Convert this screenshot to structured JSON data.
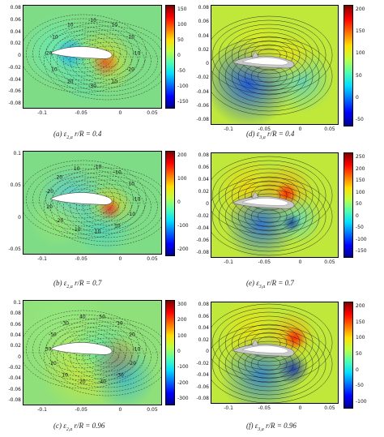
{
  "figure": {
    "panels": [
      {
        "id": "a",
        "caption_prefix": "(a) ",
        "caption_symbol": "ε",
        "caption_sub": "2,a",
        "caption_suffix": "  r/R = 0.4",
        "x_ticks": [
          "-0.1",
          "-0.05",
          "0",
          "0.05"
        ],
        "y_ticks": [
          "0.08",
          "0.06",
          "0.04",
          "0.02",
          "0",
          "-0.02",
          "-0.04",
          "-0.06",
          "-0.08"
        ],
        "colorbar_ticks": [
          "150",
          "100",
          "50",
          "0",
          "-50",
          "-100",
          "-150"
        ],
        "contour_labels": [
          "-10",
          "-20",
          "10",
          "-30",
          "20",
          "10",
          "-20",
          "-10",
          "10",
          "-10",
          "10",
          "-10"
        ]
      },
      {
        "id": "d",
        "caption_prefix": "(d) ",
        "caption_symbol": "ε",
        "caption_sub": "3,a",
        "caption_suffix": "  r/R = 0.4",
        "x_ticks": [
          "-0.1",
          "-0.05",
          "0",
          "0.05"
        ],
        "y_ticks": [
          "0.08",
          "0.06",
          "0.04",
          "0.02",
          "0",
          "-0.02",
          "-0.04",
          "-0.06",
          "-0.08"
        ],
        "colorbar_ticks": [
          "200",
          "150",
          "100",
          "50",
          "0",
          "-50"
        ],
        "contour_labels": []
      },
      {
        "id": "b",
        "caption_prefix": "(b) ",
        "caption_symbol": "ε",
        "caption_sub": "2,a",
        "caption_suffix": "  r/R = 0.7",
        "x_ticks": [
          "-0.1",
          "-0.05",
          "0",
          "0.05"
        ],
        "y_ticks": [
          "0.1",
          "0.05",
          "0",
          "-0.05"
        ],
        "colorbar_ticks": [
          "200",
          "100",
          "0",
          "-100",
          "-200"
        ],
        "contour_labels": [
          "-10",
          "-10",
          "10",
          "10",
          "-10",
          "-20",
          "20",
          "-20",
          "20",
          "10",
          "-10",
          "-10",
          "10"
        ]
      },
      {
        "id": "e",
        "caption_prefix": "(e) ",
        "caption_symbol": "ε",
        "caption_sub": "3,a",
        "caption_suffix": "  r/R = 0.7",
        "x_ticks": [
          "-0.1",
          "-0.05",
          "0",
          "0.05"
        ],
        "y_ticks": [
          "0.08",
          "0.06",
          "0.04",
          "0.02",
          "0",
          "-0.02",
          "-0.04",
          "-0.06",
          "-0.08"
        ],
        "colorbar_ticks": [
          "250",
          "200",
          "150",
          "100",
          "50",
          "0",
          "-50",
          "-100",
          "-150"
        ],
        "contour_labels": []
      },
      {
        "id": "c",
        "caption_prefix": "(c) ",
        "caption_symbol": "ε",
        "caption_sub": "2,a",
        "caption_suffix": "  r/R = 0.96",
        "x_ticks": [
          "-0.1",
          "-0.05",
          "0",
          "0.05"
        ],
        "y_ticks": [
          "0.1",
          "0.08",
          "0.06",
          "0.04",
          "0.02",
          "0",
          "-0.02",
          "-0.04",
          "-0.06",
          "-0.08"
        ],
        "colorbar_ticks": [
          "300",
          "200",
          "100",
          "0",
          "-100",
          "-200",
          "-300"
        ],
        "contour_labels": [
          "-10",
          "-20",
          "-30",
          "-40",
          "20",
          "10",
          "-20",
          "30",
          "-50",
          "-30",
          "40",
          "50",
          "10",
          "20"
        ]
      },
      {
        "id": "f",
        "caption_prefix": "(f) ",
        "caption_symbol": "ε",
        "caption_sub": "3,a",
        "caption_suffix": "  r/R = 0.96",
        "x_ticks": [
          "-0.1",
          "-0.05",
          "0",
          "0.05"
        ],
        "y_ticks": [
          "0.08",
          "0.06",
          "0.04",
          "0.02",
          "0",
          "-0.02",
          "-0.04",
          "-0.06",
          "-0.08"
        ],
        "colorbar_ticks": [
          "200",
          "150",
          "100",
          "50",
          "0",
          "-50",
          "-100"
        ],
        "contour_labels": []
      }
    ]
  },
  "chart_data": [
    {
      "type": "heatmap",
      "panel": "a",
      "x_ticks": [
        -0.1,
        -0.05,
        0,
        0.05
      ],
      "y_ticks": [
        0.08,
        0.06,
        0.04,
        0.02,
        0,
        -0.02,
        -0.04,
        -0.06,
        -0.08
      ],
      "colorbar_range": [
        -150,
        150
      ],
      "contour_levels_labeled": [
        -30,
        -20,
        -10,
        10,
        20
      ]
    },
    {
      "type": "heatmap",
      "panel": "d",
      "x_ticks": [
        -0.1,
        -0.05,
        0,
        0.05
      ],
      "y_ticks": [
        0.08,
        0.06,
        0.04,
        0.02,
        0,
        -0.02,
        -0.04,
        -0.06,
        -0.08
      ],
      "colorbar_range": [
        -50,
        200
      ]
    },
    {
      "type": "heatmap",
      "panel": "b",
      "x_ticks": [
        -0.1,
        -0.05,
        0,
        0.05
      ],
      "y_ticks": [
        0.1,
        0.05,
        0,
        -0.05
      ],
      "colorbar_range": [
        -200,
        200
      ],
      "contour_levels_labeled": [
        -20,
        -10,
        10,
        20
      ]
    },
    {
      "type": "heatmap",
      "panel": "e",
      "x_ticks": [
        -0.1,
        -0.05,
        0,
        0.05
      ],
      "y_ticks": [
        0.08,
        0.06,
        0.04,
        0.02,
        0,
        -0.02,
        -0.04,
        -0.06,
        -0.08
      ],
      "colorbar_range": [
        -150,
        250
      ]
    },
    {
      "type": "heatmap",
      "panel": "c",
      "x_ticks": [
        -0.1,
        -0.05,
        0,
        0.05
      ],
      "y_ticks": [
        0.1,
        0.08,
        0.06,
        0.04,
        0.02,
        0,
        -0.02,
        -0.04,
        -0.06,
        -0.08
      ],
      "colorbar_range": [
        -300,
        300
      ],
      "contour_levels_labeled": [
        -50,
        -40,
        -30,
        -20,
        -10,
        10,
        20,
        30,
        40,
        50
      ]
    },
    {
      "type": "heatmap",
      "panel": "f",
      "x_ticks": [
        -0.1,
        -0.05,
        0,
        0.05
      ],
      "y_ticks": [
        0.08,
        0.06,
        0.04,
        0.02,
        0,
        -0.02,
        -0.04,
        -0.06,
        -0.08
      ],
      "colorbar_range": [
        -100,
        200
      ]
    }
  ],
  "colors": {
    "jet": [
      "#00008f",
      "#0000ff",
      "#006fff",
      "#00dfff",
      "#50ffaf",
      "#c0ff3f",
      "#ffdf00",
      "#ff6f00",
      "#ff0000",
      "#800000"
    ],
    "field_neutral": "#8fe07a",
    "field_neutral_alt": "#b9e83c",
    "blade": "#ffffff",
    "blade_gray": "#c8c8c8"
  }
}
